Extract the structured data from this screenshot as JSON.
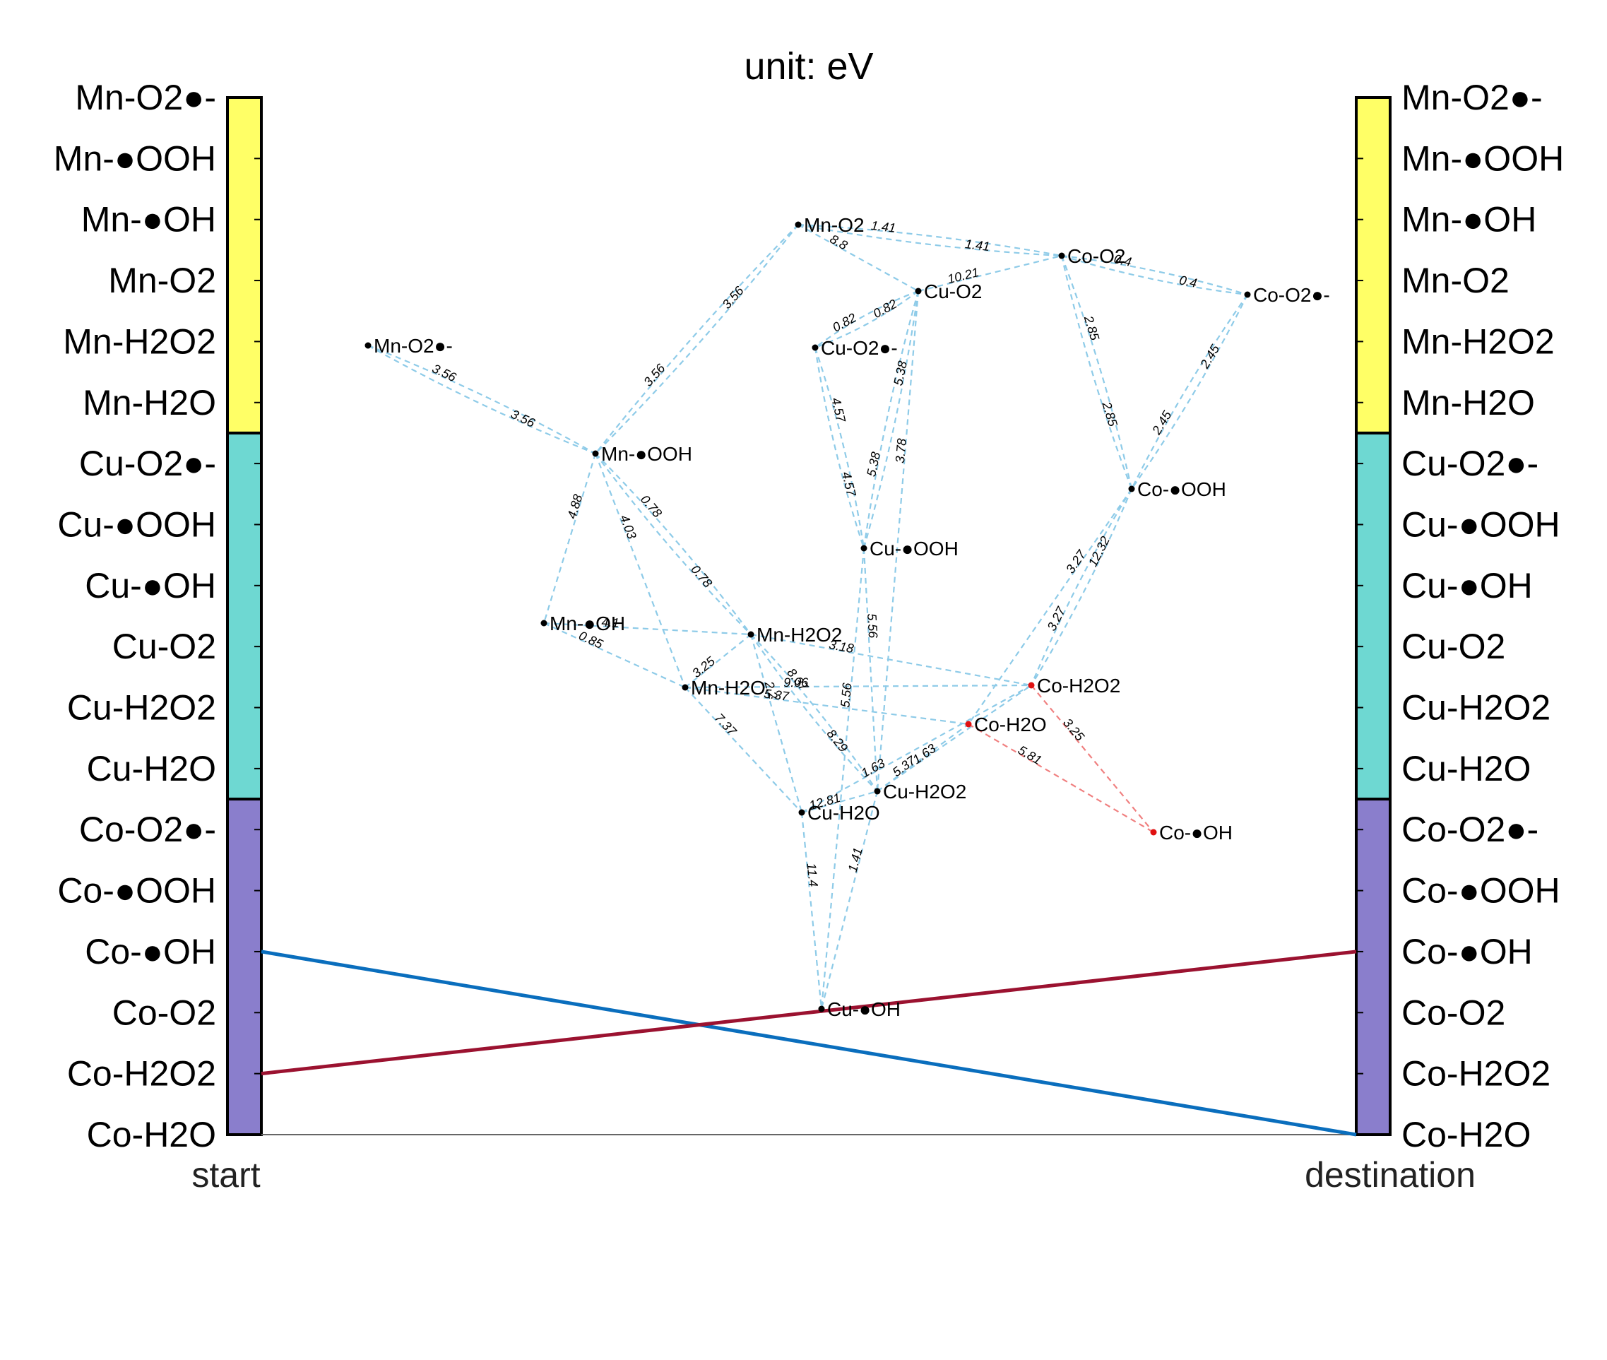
{
  "title": "unit: eV",
  "left_axis": {
    "label": "start",
    "ticks": [
      "Mn-O2●-",
      "Mn-●OOH",
      "Mn-●OH",
      "Mn-O2",
      "Mn-H2O2",
      "Mn-H2O",
      "Cu-O2●-",
      "Cu-●OOH",
      "Cu-●OH",
      "Cu-O2",
      "Cu-H2O2",
      "Cu-H2O",
      "Co-O2●-",
      "Co-●OOH",
      "Co-●OH",
      "Co-O2",
      "Co-H2O2",
      "Co-H2O"
    ]
  },
  "right_axis": {
    "label": "destination",
    "ticks": [
      "Mn-O2●-",
      "Mn-●OOH",
      "Mn-●OH",
      "Mn-O2",
      "Mn-H2O2",
      "Mn-H2O",
      "Cu-O2●-",
      "Cu-●OOH",
      "Cu-●OH",
      "Cu-O2",
      "Cu-H2O2",
      "Cu-H2O",
      "Co-O2●-",
      "Co-●OOH",
      "Co-●OH",
      "Co-O2",
      "Co-H2O2",
      "Co-H2O"
    ]
  },
  "groups": [
    {
      "name": "Mn",
      "color": "#ffff66"
    },
    {
      "name": "Cu",
      "color": "#6ed8d2"
    },
    {
      "name": "Co",
      "color": "#8a7ecc"
    }
  ],
  "colors": {
    "edge": "#8ecbe8",
    "path_edge": "#f08080",
    "path_node": "#e01010",
    "node": "#000000",
    "flow_blue": "#0a6ebd",
    "flow_red": "#9b1230"
  },
  "flows": [
    {
      "from": "Co-●OH",
      "to": "Co-H2O",
      "color": "#0a6ebd"
    },
    {
      "from": "Co-H2O2",
      "to": "Co-●OH",
      "color": "#9b1230"
    }
  ],
  "nodes": [
    {
      "id": "Mn-O2",
      "label": "Mn-O2"
    },
    {
      "id": "Mn-O2●-",
      "label": "Mn-O2●-"
    },
    {
      "id": "Mn-●OOH",
      "label": "Mn-●OOH"
    },
    {
      "id": "Mn-●OH",
      "label": "Mn-●OH"
    },
    {
      "id": "Mn-H2O2",
      "label": "Mn-H2O2"
    },
    {
      "id": "Mn-H2O",
      "label": "Mn-H2O"
    },
    {
      "id": "Cu-O2",
      "label": "Cu-O2"
    },
    {
      "id": "Cu-O2●-",
      "label": "Cu-O2●-"
    },
    {
      "id": "Cu-●OOH",
      "label": "Cu-●OOH"
    },
    {
      "id": "Cu-H2O2",
      "label": "Cu-H2O2"
    },
    {
      "id": "Cu-H2O",
      "label": "Cu-H2O"
    },
    {
      "id": "Cu-●OH",
      "label": "Cu-●OH"
    },
    {
      "id": "Co-O2",
      "label": "Co-O2"
    },
    {
      "id": "Co-O2●-",
      "label": "Co-O2●-"
    },
    {
      "id": "Co-●OOH",
      "label": "Co-●OOH"
    },
    {
      "id": "Co-H2O2",
      "label": "Co-H2O2",
      "highlight": true
    },
    {
      "id": "Co-H2O",
      "label": "Co-H2O",
      "highlight": true
    },
    {
      "id": "Co-●OH",
      "label": "Co-●OH",
      "highlight": true
    }
  ],
  "edges": [
    {
      "a": "Mn-O2",
      "b": "Co-O2",
      "labels": [
        "1.41",
        "1.41"
      ]
    },
    {
      "a": "Mn-O2",
      "b": "Cu-O2",
      "labels": [
        "8.8"
      ]
    },
    {
      "a": "Mn-O2",
      "b": "Mn-●OOH",
      "labels": [
        "3.56",
        "3.56"
      ]
    },
    {
      "a": "Cu-O2",
      "b": "Co-O2",
      "labels": [
        "10.21"
      ]
    },
    {
      "a": "Co-O2",
      "b": "Co-O2●-",
      "labels": [
        "0.4",
        "0.4"
      ]
    },
    {
      "a": "Cu-O2",
      "b": "Cu-O2●-",
      "labels": [
        "0.82",
        "0.82"
      ]
    },
    {
      "a": "Mn-O2●-",
      "b": "Mn-●OOH",
      "labels": [
        "3.56",
        "3.56"
      ]
    },
    {
      "a": "Co-O2",
      "b": "Co-●OOH",
      "labels": [
        "2.85",
        "2.85"
      ]
    },
    {
      "a": "Co-O2●-",
      "b": "Co-●OOH",
      "labels": [
        "2.45",
        "2.45"
      ]
    },
    {
      "a": "Cu-O2",
      "b": "Cu-●OOH",
      "labels": [
        "5.38",
        "5.38"
      ]
    },
    {
      "a": "Cu-O2●-",
      "b": "Cu-●OOH",
      "labels": [
        "4.57",
        "4.57"
      ]
    },
    {
      "a": "Mn-●OOH",
      "b": "Mn-●OH",
      "labels": [
        "4.88"
      ]
    },
    {
      "a": "Mn-●OOH",
      "b": "Mn-H2O2",
      "labels": [
        "0.78",
        "0.78"
      ]
    },
    {
      "a": "Mn-●OOH",
      "b": "Mn-H2O",
      "labels": [
        "4.03"
      ]
    },
    {
      "a": "Mn-●OH",
      "b": "Mn-H2O2",
      "labels": [
        "4.1"
      ]
    },
    {
      "a": "Mn-●OH",
      "b": "Mn-H2O",
      "labels": [
        "0.85"
      ]
    },
    {
      "a": "Mn-H2O",
      "b": "Mn-H2O2",
      "labels": [
        "3.25"
      ]
    },
    {
      "a": "Mn-H2O2",
      "b": "Co-H2O2",
      "labels": [
        "3.18"
      ]
    },
    {
      "a": "Mn-H2O2",
      "b": "Cu-H2O2",
      "labels": [
        "8.37",
        "8.29"
      ]
    },
    {
      "a": "Mn-H2O2",
      "b": "Cu-H2O",
      "labels": [
        "2.2"
      ]
    },
    {
      "a": "Mn-H2O",
      "b": "Cu-H2O",
      "labels": [
        "7.37"
      ]
    },
    {
      "a": "Mn-H2O",
      "b": "Co-H2O2",
      "labels": [
        "9.06"
      ]
    },
    {
      "a": "Mn-H2O",
      "b": "Co-H2O",
      "labels": [
        "5.37"
      ]
    },
    {
      "a": "Cu-●OOH",
      "b": "Cu-H2O2",
      "labels": [
        "5.56"
      ]
    },
    {
      "a": "Cu-●OOH",
      "b": "Cu-●OH",
      "labels": [
        "5.56"
      ]
    },
    {
      "a": "Cu-O2",
      "b": "Cu-H2O2",
      "labels": [
        "3.78"
      ]
    },
    {
      "a": "Co-●OOH",
      "b": "Co-H2O2",
      "labels": [
        "12.32",
        "3.27"
      ]
    },
    {
      "a": "Co-●OOH",
      "b": "Co-H2O",
      "labels": [
        "3.27"
      ]
    },
    {
      "a": "Cu-H2O2",
      "b": "Co-H2O",
      "labels": [
        "5.37"
      ]
    },
    {
      "a": "Cu-H2O",
      "b": "Co-H2O2",
      "labels": [
        "1.63"
      ]
    },
    {
      "a": "Cu-H2O2",
      "b": "Co-H2O2",
      "labels": [
        "1.63"
      ]
    },
    {
      "a": "Cu-H2O",
      "b": "Cu-H2O2",
      "labels": [
        "12.81"
      ]
    },
    {
      "a": "Cu-H2O",
      "b": "Cu-●OH",
      "labels": [
        "11.4"
      ]
    },
    {
      "a": "Cu-H2O2",
      "b": "Cu-●OH",
      "labels": [
        "1.41"
      ]
    },
    {
      "a": "Co-H2O2",
      "b": "Co-●OH",
      "labels": [
        "3.25"
      ],
      "path": true
    },
    {
      "a": "Co-H2O",
      "b": "Co-●OH",
      "labels": [
        "5.81"
      ],
      "path": true
    }
  ]
}
